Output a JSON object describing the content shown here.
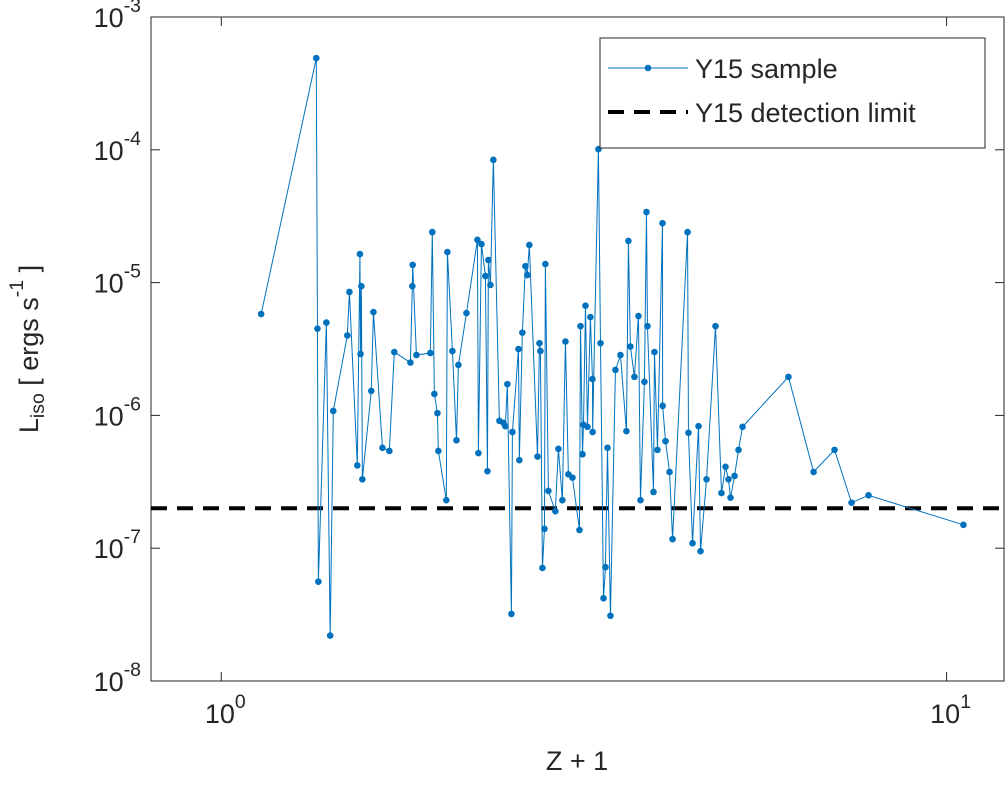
{
  "chart_data": {
    "type": "line",
    "xlabel": "Z + 1",
    "ylabel": "L_iso [ ergs s^-1 ]",
    "xscale": "log",
    "yscale": "log",
    "xlim": [
      0.8,
      12
    ],
    "ylim": [
      1e-08,
      0.001
    ],
    "xticks": [
      {
        "value": 1,
        "label": "10^0"
      },
      {
        "value": 10,
        "label": "10^1"
      }
    ],
    "yticks": [
      {
        "value": 1e-08,
        "label": "10^-8"
      },
      {
        "value": 1e-07,
        "label": "10^-7"
      },
      {
        "value": 1e-06,
        "label": "10^-6"
      },
      {
        "value": 1e-05,
        "label": "10^-5"
      },
      {
        "value": 0.0001,
        "label": "10^-4"
      },
      {
        "value": 0.001,
        "label": "10^-3"
      }
    ],
    "grid": false,
    "legend": "upper right",
    "x": [
      1.135,
      1.352,
      1.357,
      1.361,
      1.396,
      1.413,
      1.427,
      1.492,
      1.502,
      1.54,
      1.553,
      1.556,
      1.56,
      1.565,
      1.61,
      1.621,
      1.668,
      1.705,
      1.732,
      1.823,
      1.834,
      1.836,
      1.858,
      1.942,
      1.954,
      1.967,
      1.986,
      1.992,
      2.043,
      2.05,
      2.083,
      2.11,
      2.123,
      2.178,
      2.255,
      2.262,
      2.284,
      2.313,
      2.328,
      2.335,
      2.35,
      2.372,
      2.418,
      2.449,
      2.464,
      2.48,
      2.512,
      2.52,
      2.569,
      2.576,
      2.601,
      2.626,
      2.642,
      2.659,
      2.729,
      2.746,
      2.754,
      2.772,
      2.79,
      2.798,
      2.825,
      2.888,
      2.916,
      2.953,
      2.982,
      3.01,
      3.049,
      3.118,
      3.128,
      3.148,
      3.158,
      3.178,
      3.198,
      3.228,
      3.249,
      3.251,
      3.311,
      3.333,
      3.365,
      3.386,
      3.408,
      3.44,
      3.495,
      3.551,
      3.619,
      3.642,
      3.665,
      3.712,
      3.76,
      3.784,
      3.832,
      3.857,
      3.869,
      3.944,
      3.956,
      3.994,
      4.058,
      4.06,
      4.097,
      4.15,
      4.19,
      4.394,
      4.407,
      4.464,
      4.55,
      4.579,
      4.667,
      4.802,
      4.894,
      4.957,
      5.004,
      5.036,
      5.101,
      5.166,
      5.232,
      6.053,
      6.556,
      7.007,
      7.396,
      7.806,
      10.55
    ],
    "series": [
      {
        "name": "Y15 sample",
        "color": "#0072bd",
        "values": [
          5.8e-06,
          0.00049,
          4.5e-06,
          5.6e-08,
          5e-06,
          2.2e-08,
          1.08e-06,
          4e-06,
          8.5e-06,
          4.2e-07,
          1.64e-05,
          2.9e-06,
          9.4e-06,
          3.3e-07,
          1.53e-06,
          6e-06,
          5.7e-07,
          5.4e-07,
          3e-06,
          2.5e-06,
          9.4e-06,
          1.36e-05,
          2.85e-06,
          2.95e-06,
          2.4e-05,
          1.45e-06,
          1.04e-06,
          5.4e-07,
          2.3e-07,
          1.7e-05,
          3.05e-06,
          6.5e-07,
          2.4e-06,
          5.9e-06,
          2.1e-05,
          5.2e-07,
          1.95e-05,
          1.12e-05,
          3.8e-07,
          1.48e-05,
          9.6e-06,
          8.4e-05,
          9.1e-07,
          8.8e-07,
          8.3e-07,
          1.72e-06,
          3.2e-08,
          7.5e-07,
          3.16e-06,
          4.6e-07,
          4.2e-06,
          1.33e-05,
          1.14e-05,
          1.92e-05,
          4.9e-07,
          3.5e-06,
          3.05e-06,
          7.1e-08,
          1.4e-07,
          1.38e-05,
          2.7e-07,
          1.9e-07,
          5.6e-07,
          2.3e-07,
          3.6e-06,
          3.6e-07,
          3.4e-07,
          1.37e-07,
          4.7e-06,
          5.1e-07,
          8.5e-07,
          6.7e-06,
          8.2e-07,
          5.5e-06,
          1.88e-06,
          7.5e-07,
          0.000101,
          3.5e-06,
          4.2e-08,
          7.2e-08,
          5.7e-07,
          3.1e-08,
          2.2e-06,
          2.85e-06,
          7.6e-07,
          2.06e-05,
          3.3e-06,
          1.95e-06,
          5.6e-06,
          2.3e-07,
          1.79e-06,
          3.4e-05,
          4.7e-06,
          2.65e-07,
          3e-06,
          5.5e-07,
          2.8e-05,
          1.18e-06,
          6.4e-07,
          3.75e-07,
          1.17e-07,
          2.4e-05,
          7.4e-07,
          1.09e-07,
          8.3e-07,
          9.5e-08,
          3.3e-07,
          4.7e-06,
          2.6e-07,
          4.1e-07,
          3.3e-07,
          2.4e-07,
          3.5e-07,
          5.5e-07,
          8.2e-07,
          1.95e-06,
          3.75e-07,
          5.5e-07,
          2.2e-07,
          2.5e-07,
          1.5e-07
        ]
      }
    ],
    "reference_lines": [
      {
        "name": "Y15 detection limit",
        "value": 2e-07,
        "color": "#000000",
        "style": "dashed"
      }
    ]
  }
}
